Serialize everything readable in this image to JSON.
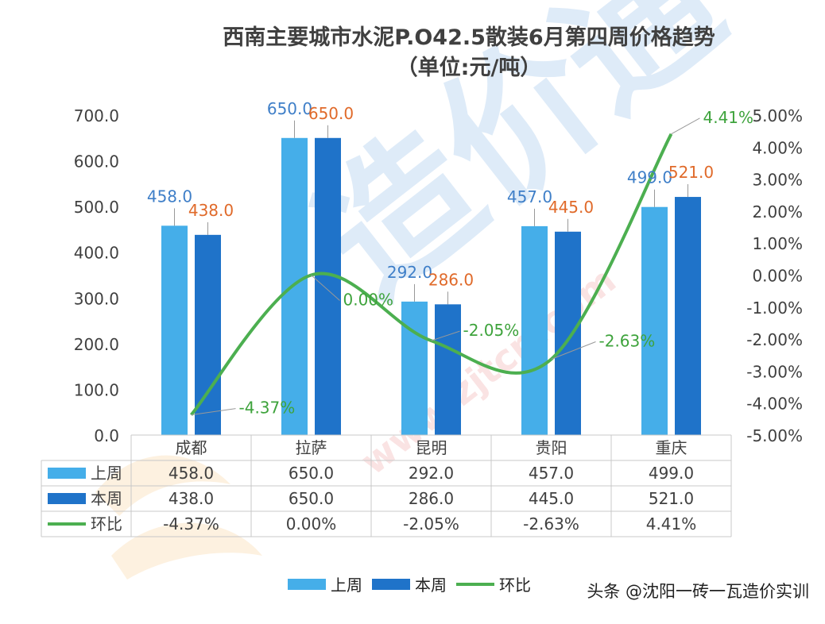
{
  "chart_data": {
    "type": "bar",
    "title": "西南主要城市水泥P.O42.5散装6月第四周价格趋势",
    "subtitle": "（单位:元/吨）",
    "categories": [
      "成都",
      "拉萨",
      "昆明",
      "贵阳",
      "重庆"
    ],
    "series": [
      {
        "name": "上周",
        "type": "bar",
        "axis": "left",
        "color": "#45aee9",
        "values": [
          458.0,
          650.0,
          292.0,
          457.0,
          499.0
        ],
        "labels": [
          "458.0",
          "650.0",
          "292.0",
          "457.0",
          "499.0"
        ],
        "label_color": "#3f7fc8"
      },
      {
        "name": "本周",
        "type": "bar",
        "axis": "left",
        "color": "#1f73c9",
        "values": [
          438.0,
          650.0,
          286.0,
          445.0,
          521.0
        ],
        "labels": [
          "438.0",
          "650.0",
          "286.0",
          "445.0",
          "521.0"
        ],
        "label_color": "#e06a2a"
      },
      {
        "name": "环比",
        "type": "line",
        "axis": "right",
        "color": "#4caf50",
        "values": [
          -4.37,
          0.0,
          -2.05,
          -2.63,
          4.41
        ],
        "labels": [
          "-4.37%",
          "0.00%",
          "-2.05%",
          "-2.63%",
          "4.41%"
        ],
        "label_color": "#3ea33c"
      }
    ],
    "y_left": {
      "range": [
        0,
        700
      ],
      "ticks": [
        "0.0",
        "100.0",
        "200.0",
        "300.0",
        "400.0",
        "500.0",
        "600.0",
        "700.0"
      ]
    },
    "y_right": {
      "range": [
        -5,
        5
      ],
      "ticks": [
        "-5.00%",
        "-4.00%",
        "-3.00%",
        "-2.00%",
        "-1.00%",
        "0.00%",
        "1.00%",
        "2.00%",
        "3.00%",
        "4.00%",
        "5.00%"
      ]
    },
    "data_table": true,
    "legend": [
      "上周",
      "本周",
      "环比"
    ],
    "legend_position": "bottom"
  },
  "watermark": {
    "text": "造价通",
    "url": "www.zjtcn.com"
  },
  "footer_credit": "头条 @沈阳一砖一瓦造价实训"
}
